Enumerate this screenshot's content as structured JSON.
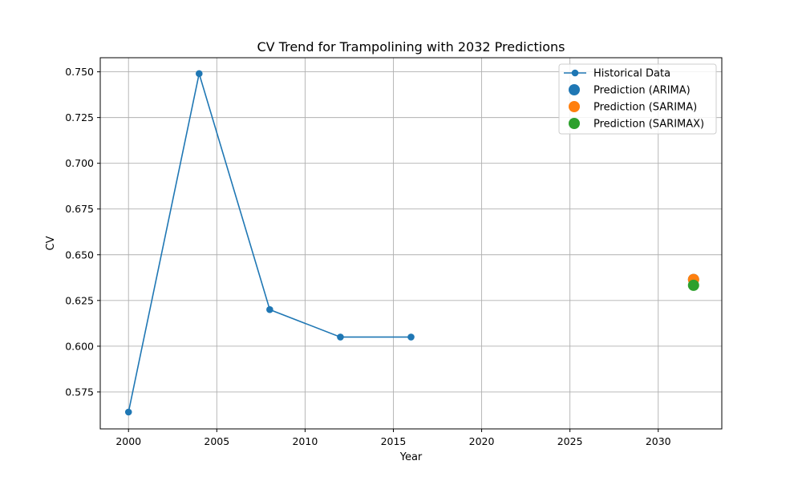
{
  "chart_data": {
    "type": "line",
    "title": "CV Trend for Trampolining with 2032 Predictions",
    "xlabel": "Year",
    "ylabel": "CV",
    "xlim": [
      1998.4,
      2033.6
    ],
    "ylim": [
      0.5548,
      0.7577
    ],
    "xticks": [
      2000,
      2005,
      2010,
      2015,
      2020,
      2025,
      2030
    ],
    "yticks": [
      0.575,
      0.6,
      0.625,
      0.65,
      0.675,
      0.7,
      0.725,
      0.75
    ],
    "xtick_labels": [
      "2000",
      "2005",
      "2010",
      "2015",
      "2020",
      "2025",
      "2030"
    ],
    "ytick_labels": [
      "0.575",
      "0.600",
      "0.625",
      "0.650",
      "0.675",
      "0.700",
      "0.725",
      "0.750"
    ],
    "grid": true,
    "legend_position": "top-right",
    "series": [
      {
        "name": "Historical Data",
        "kind": "line-with-markers",
        "color": "#1f77b4",
        "x": [
          2000,
          2004,
          2008,
          2012,
          2016
        ],
        "y": [
          0.564,
          0.749,
          0.62,
          0.605,
          0.605
        ]
      },
      {
        "name": "Prediction (ARIMA)",
        "kind": "point",
        "color": "#1f77b4",
        "x": [
          2032
        ],
        "y": [
          0.6365
        ]
      },
      {
        "name": "Prediction (SARIMA)",
        "kind": "point",
        "color": "#ff7f0e",
        "x": [
          2032
        ],
        "y": [
          0.6365
        ]
      },
      {
        "name": "Prediction (SARIMAX)",
        "kind": "point",
        "color": "#2ca02c",
        "x": [
          2032
        ],
        "y": [
          0.6333
        ]
      }
    ]
  }
}
